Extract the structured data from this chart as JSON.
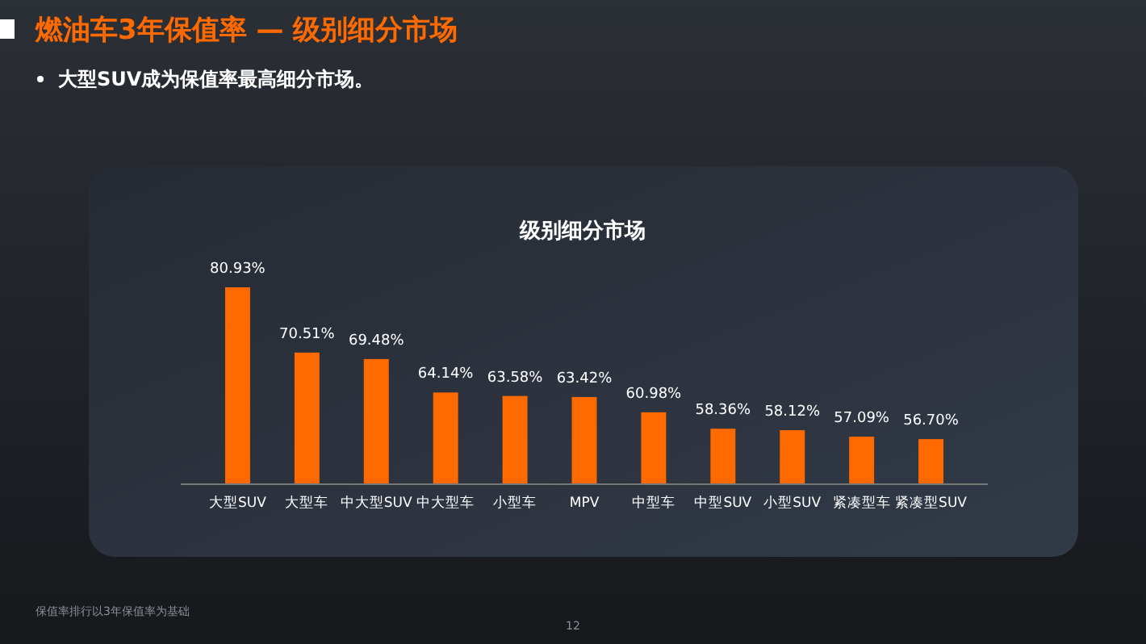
{
  "chart_data": {
    "type": "bar",
    "title": "燃油车3年保值率 — 级别细分市场",
    "subtitle": "大型SUV成为保值率最高细分市场。",
    "annotations": [
      "级别细分市场",
      "保值率排行以3年保值率为基础",
      "12"
    ],
    "categories": [
      "大型SUV",
      "大型车",
      "中大型SUV",
      "中大型车",
      "小型车",
      "MPV",
      "中型车",
      "中型SUV",
      "小型SUV",
      "紧凑型车",
      "紧凑型SUV"
    ],
    "values": [
      80.93,
      70.51,
      69.48,
      64.14,
      63.58,
      63.42,
      60.98,
      58.36,
      58.12,
      57.09,
      56.7
    ],
    "value_labels": [
      "80.93%",
      "70.51%",
      "69.48%",
      "64.14%",
      "63.58%",
      "63.42%",
      "60.98%",
      "58.36%",
      "58.12%",
      "57.09%",
      "56.70%"
    ],
    "color": "#ff6a00",
    "ylim": [
      49.5,
      80.93
    ]
  }
}
